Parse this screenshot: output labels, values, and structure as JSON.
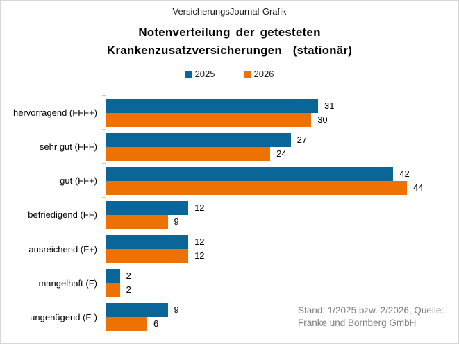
{
  "header": {
    "brand": "VersicherungsJournal-Grafik",
    "title": "Notenverteilung der getesteten Krankenzusatzversicherungen  (stationär)"
  },
  "chart_data": {
    "type": "bar",
    "orientation": "horizontal",
    "title": "Notenverteilung der getesteten Krankenzusatzversicherungen (stationär)",
    "categories": [
      "hervorragend (FFF+)",
      "sehr gut (FFF)",
      "gut (FF+)",
      "befriedigend (FF)",
      "ausreichend (F+)",
      "mangelhaft (F)",
      "ungenügend (F-)"
    ],
    "series": [
      {
        "name": "2025",
        "color": "#0a6598",
        "values": [
          31,
          27,
          42,
          12,
          12,
          2,
          9
        ]
      },
      {
        "name": "2026",
        "color": "#ee7203",
        "values": [
          30,
          24,
          44,
          9,
          12,
          2,
          6
        ]
      }
    ],
    "value_labels": true,
    "xlim": [
      0,
      46
    ],
    "grid": false,
    "legend_position": "top"
  },
  "footer": {
    "note": "Stand: 1/2025 bzw. 2/2026; Quelle: Franke und Bornberg  GmbH"
  }
}
